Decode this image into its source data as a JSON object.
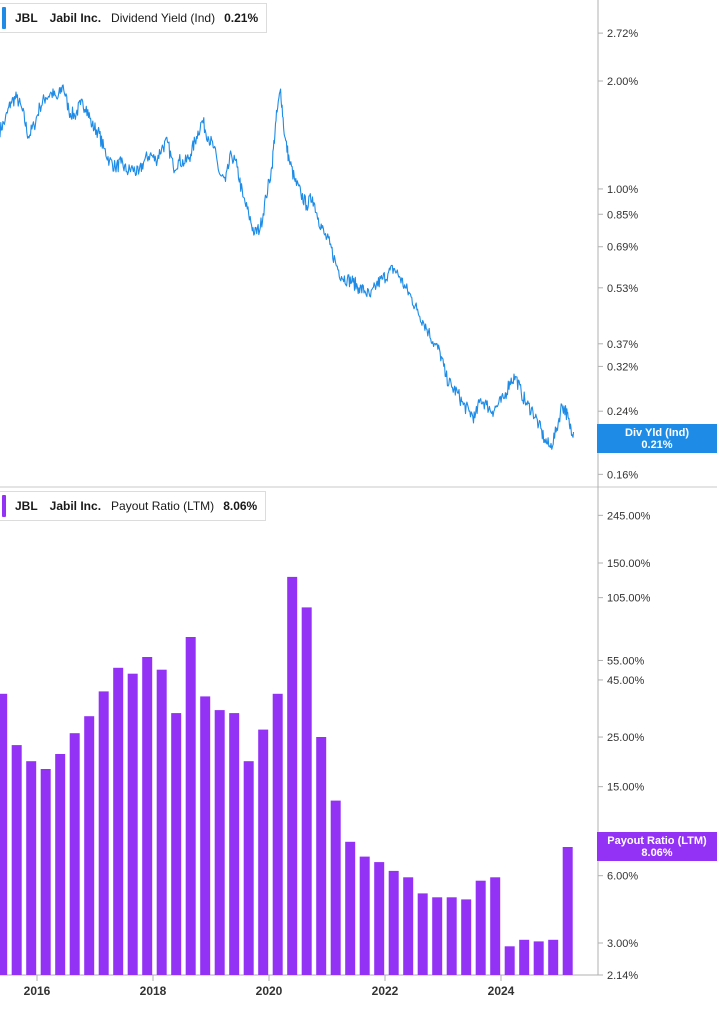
{
  "colors": {
    "yield": "#1e8ce6",
    "payout": "#9332f5",
    "axis": "#b0b0b0",
    "text": "#333333"
  },
  "top_panel": {
    "legend": {
      "ticker": "JBL",
      "company": "Jabil Inc.",
      "metric": "Dividend Yield (Ind)",
      "value": "0.21%"
    },
    "badge": {
      "label": "Div Yld (Ind)",
      "value": "0.21%"
    }
  },
  "bottom_panel": {
    "legend": {
      "ticker": "JBL",
      "company": "Jabil Inc.",
      "metric": "Payout Ratio (LTM)",
      "value": "8.06%"
    },
    "badge": {
      "label": "Payout Ratio (LTM)",
      "value": "8.06%"
    }
  },
  "chart_data": [
    {
      "type": "line",
      "scale": "log",
      "series": [
        {
          "name": "Dividend Yield (Ind)"
        }
      ],
      "x_ticks": [
        "2016",
        "2018",
        "2020",
        "2022",
        "2024"
      ],
      "y_ticks": [
        "2.72%",
        "2.00%",
        "1.00%",
        "0.85%",
        "0.69%",
        "0.53%",
        "0.37%",
        "0.32%",
        "0.24%",
        "0.16%"
      ],
      "ylim": [
        0.15,
        3.6
      ],
      "x": [
        2015.35,
        2015.45,
        2015.55,
        2015.65,
        2015.75,
        2015.85,
        2015.95,
        2016.05,
        2016.15,
        2016.25,
        2016.35,
        2016.45,
        2016.55,
        2016.65,
        2016.75,
        2016.85,
        2016.95,
        2017.05,
        2017.15,
        2017.25,
        2017.35,
        2017.45,
        2017.55,
        2017.65,
        2017.75,
        2017.85,
        2017.95,
        2018.05,
        2018.15,
        2018.25,
        2018.35,
        2018.45,
        2018.55,
        2018.65,
        2018.75,
        2018.85,
        2018.95,
        2019.05,
        2019.15,
        2019.25,
        2019.35,
        2019.45,
        2019.55,
        2019.65,
        2019.75,
        2019.85,
        2019.95,
        2020.05,
        2020.12,
        2020.2,
        2020.27,
        2020.35,
        2020.45,
        2020.55,
        2020.65,
        2020.75,
        2020.85,
        2020.95,
        2021.05,
        2021.15,
        2021.25,
        2021.35,
        2021.45,
        2021.55,
        2021.65,
        2021.75,
        2021.85,
        2021.95,
        2022.05,
        2022.15,
        2022.25,
        2022.35,
        2022.45,
        2022.55,
        2022.65,
        2022.75,
        2022.85,
        2022.95,
        2023.05,
        2023.15,
        2023.25,
        2023.35,
        2023.45,
        2023.55,
        2023.65,
        2023.75,
        2023.85,
        2023.95,
        2024.05,
        2024.15,
        2024.25,
        2024.35,
        2024.45,
        2024.55,
        2024.65,
        2024.75,
        2024.85,
        2024.95,
        2025.05,
        2025.12,
        2025.18,
        2025.25
      ],
      "y": [
        1.45,
        1.55,
        1.75,
        1.8,
        1.65,
        1.4,
        1.5,
        1.7,
        1.8,
        1.85,
        1.78,
        1.95,
        1.65,
        1.6,
        1.72,
        1.7,
        1.5,
        1.45,
        1.3,
        1.2,
        1.15,
        1.18,
        1.12,
        1.14,
        1.1,
        1.2,
        1.25,
        1.2,
        1.3,
        1.35,
        1.15,
        1.2,
        1.18,
        1.25,
        1.4,
        1.55,
        1.4,
        1.3,
        1.1,
        1.05,
        1.25,
        1.15,
        0.95,
        0.85,
        0.75,
        0.78,
        0.95,
        1.15,
        1.55,
        1.9,
        1.4,
        1.2,
        1.05,
        0.97,
        0.9,
        0.95,
        0.83,
        0.75,
        0.7,
        0.62,
        0.57,
        0.56,
        0.55,
        0.53,
        0.52,
        0.5,
        0.54,
        0.56,
        0.58,
        0.6,
        0.57,
        0.53,
        0.5,
        0.46,
        0.43,
        0.4,
        0.37,
        0.35,
        0.3,
        0.28,
        0.27,
        0.25,
        0.24,
        0.23,
        0.26,
        0.25,
        0.24,
        0.25,
        0.26,
        0.29,
        0.3,
        0.27,
        0.25,
        0.24,
        0.22,
        0.2,
        0.19,
        0.21,
        0.25,
        0.24,
        0.22,
        0.21
      ]
    },
    {
      "type": "bar",
      "scale": "log",
      "series": [
        {
          "name": "Payout Ratio (LTM)"
        }
      ],
      "x_ticks": [
        "2016",
        "2018",
        "2020",
        "2022",
        "2024"
      ],
      "y_ticks": [
        "245.00%",
        "150.00%",
        "105.00%",
        "55.00%",
        "45.00%",
        "25.00%",
        "15.00%",
        "6.00%",
        "3.00%",
        "2.14%"
      ],
      "ylim": [
        2.14,
        320
      ],
      "x": [
        2015.4,
        2015.65,
        2015.9,
        2016.15,
        2016.4,
        2016.65,
        2016.9,
        2017.15,
        2017.4,
        2017.65,
        2017.9,
        2018.15,
        2018.4,
        2018.65,
        2018.9,
        2019.15,
        2019.4,
        2019.65,
        2019.9,
        2020.15,
        2020.4,
        2020.65,
        2020.9,
        2021.15,
        2021.4,
        2021.65,
        2021.9,
        2022.15,
        2022.4,
        2022.65,
        2022.9,
        2023.15,
        2023.4,
        2023.65,
        2023.9,
        2024.15,
        2024.4,
        2024.65,
        2024.9,
        2025.15
      ],
      "values": [
        39,
        23,
        19.5,
        18,
        21,
        26,
        31,
        40,
        51,
        48,
        57,
        50,
        32,
        70,
        38,
        33,
        32,
        19.5,
        27,
        39,
        130,
        95,
        25,
        13,
        8.5,
        7.3,
        6.9,
        6.3,
        5.9,
        5,
        4.8,
        4.8,
        4.7,
        5.7,
        5.9,
        2.9,
        3.1,
        3.05,
        3.1,
        8.06
      ]
    }
  ]
}
